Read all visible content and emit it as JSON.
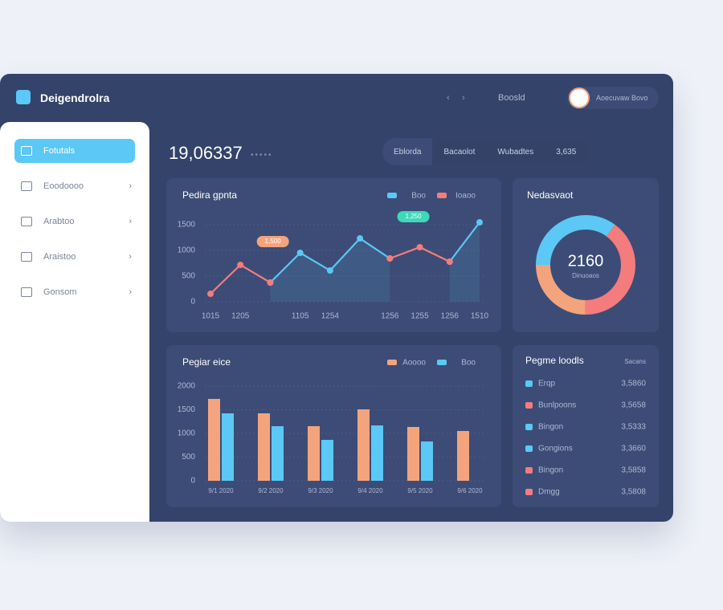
{
  "header": {
    "brand": "Deigendrolra",
    "nav": "Boosld",
    "user": "Aoecuvaw Bovo"
  },
  "sidebar": {
    "items": [
      "Fotutals",
      "Eoodoooo",
      "Arabtoo",
      "Araistoo",
      "Gonsom"
    ]
  },
  "summary": {
    "value": "19,06337",
    "tabs": [
      "Eblorda",
      "Bacaolot",
      "Wubadtes",
      "3,635"
    ]
  },
  "line_chart": {
    "type": "line",
    "title": "Pedira gpnta",
    "categories": [
      "1015",
      "1205",
      null,
      "1105",
      "1254",
      null,
      "1256",
      "1255",
      "1256",
      "1510"
    ],
    "series": [
      {
        "name": "Boo",
        "color": "#5bc8f5",
        "values": [
          null,
          null,
          375,
          953,
          609,
          1234,
          844,
          null,
          781,
          1547
        ]
      },
      {
        "name": "Ioaoo",
        "color": "#f47c7c",
        "values": [
          156,
          719,
          375,
          null,
          null,
          null,
          844,
          1063,
          781,
          null
        ]
      }
    ],
    "ylim": [
      0,
      1600
    ],
    "yticks": [
      0,
      500,
      1000,
      1500
    ],
    "annotations": [
      {
        "text": "1,500",
        "color": "#f4a47c"
      },
      {
        "text": "1,250",
        "color": "#3dd9b8"
      }
    ]
  },
  "donut_chart": {
    "type": "pie",
    "title": "Nedasvaot",
    "center_value": "2160",
    "center_label": "Dinuoaos",
    "values": [
      35,
      40,
      25
    ],
    "colors": [
      "#5bc8f5",
      "#f47c7c",
      "#f4a47c"
    ]
  },
  "bar_chart": {
    "type": "bar",
    "title": "Pegiar eice",
    "categories": [
      "9/1 2020",
      "9/2 2020",
      "9/3 2020",
      "9/4 2020",
      "9/5 2020",
      "9/6 2020"
    ],
    "series": [
      {
        "name": "Aoooo",
        "color": "#f4a47c",
        "values": [
          1729,
          1424,
          1153,
          1508,
          1136,
          1051
        ]
      },
      {
        "name": "Boo",
        "color": "#5bc8f5",
        "values": [
          1424,
          1153,
          864,
          1169,
          830,
          null
        ]
      }
    ],
    "ylim": [
      0,
      2000
    ],
    "yticks": [
      0,
      500,
      1000,
      1500,
      2000
    ]
  },
  "list": {
    "title": "Pegme loodls",
    "link": "Sacans",
    "rows": [
      [
        "Erqp",
        "3,5860",
        "#5bc8f5"
      ],
      [
        "Bunlpoons",
        "3,5658",
        "#f47c7c"
      ],
      [
        "Bingon",
        "3,5333",
        "#5bc8f5"
      ],
      [
        "Gongions",
        "3,3660",
        "#5bc8f5"
      ],
      [
        "Bingon",
        "3,5858",
        "#f47c7c"
      ],
      [
        "Dmgg",
        "3,5808",
        "#f47c7c"
      ]
    ]
  }
}
